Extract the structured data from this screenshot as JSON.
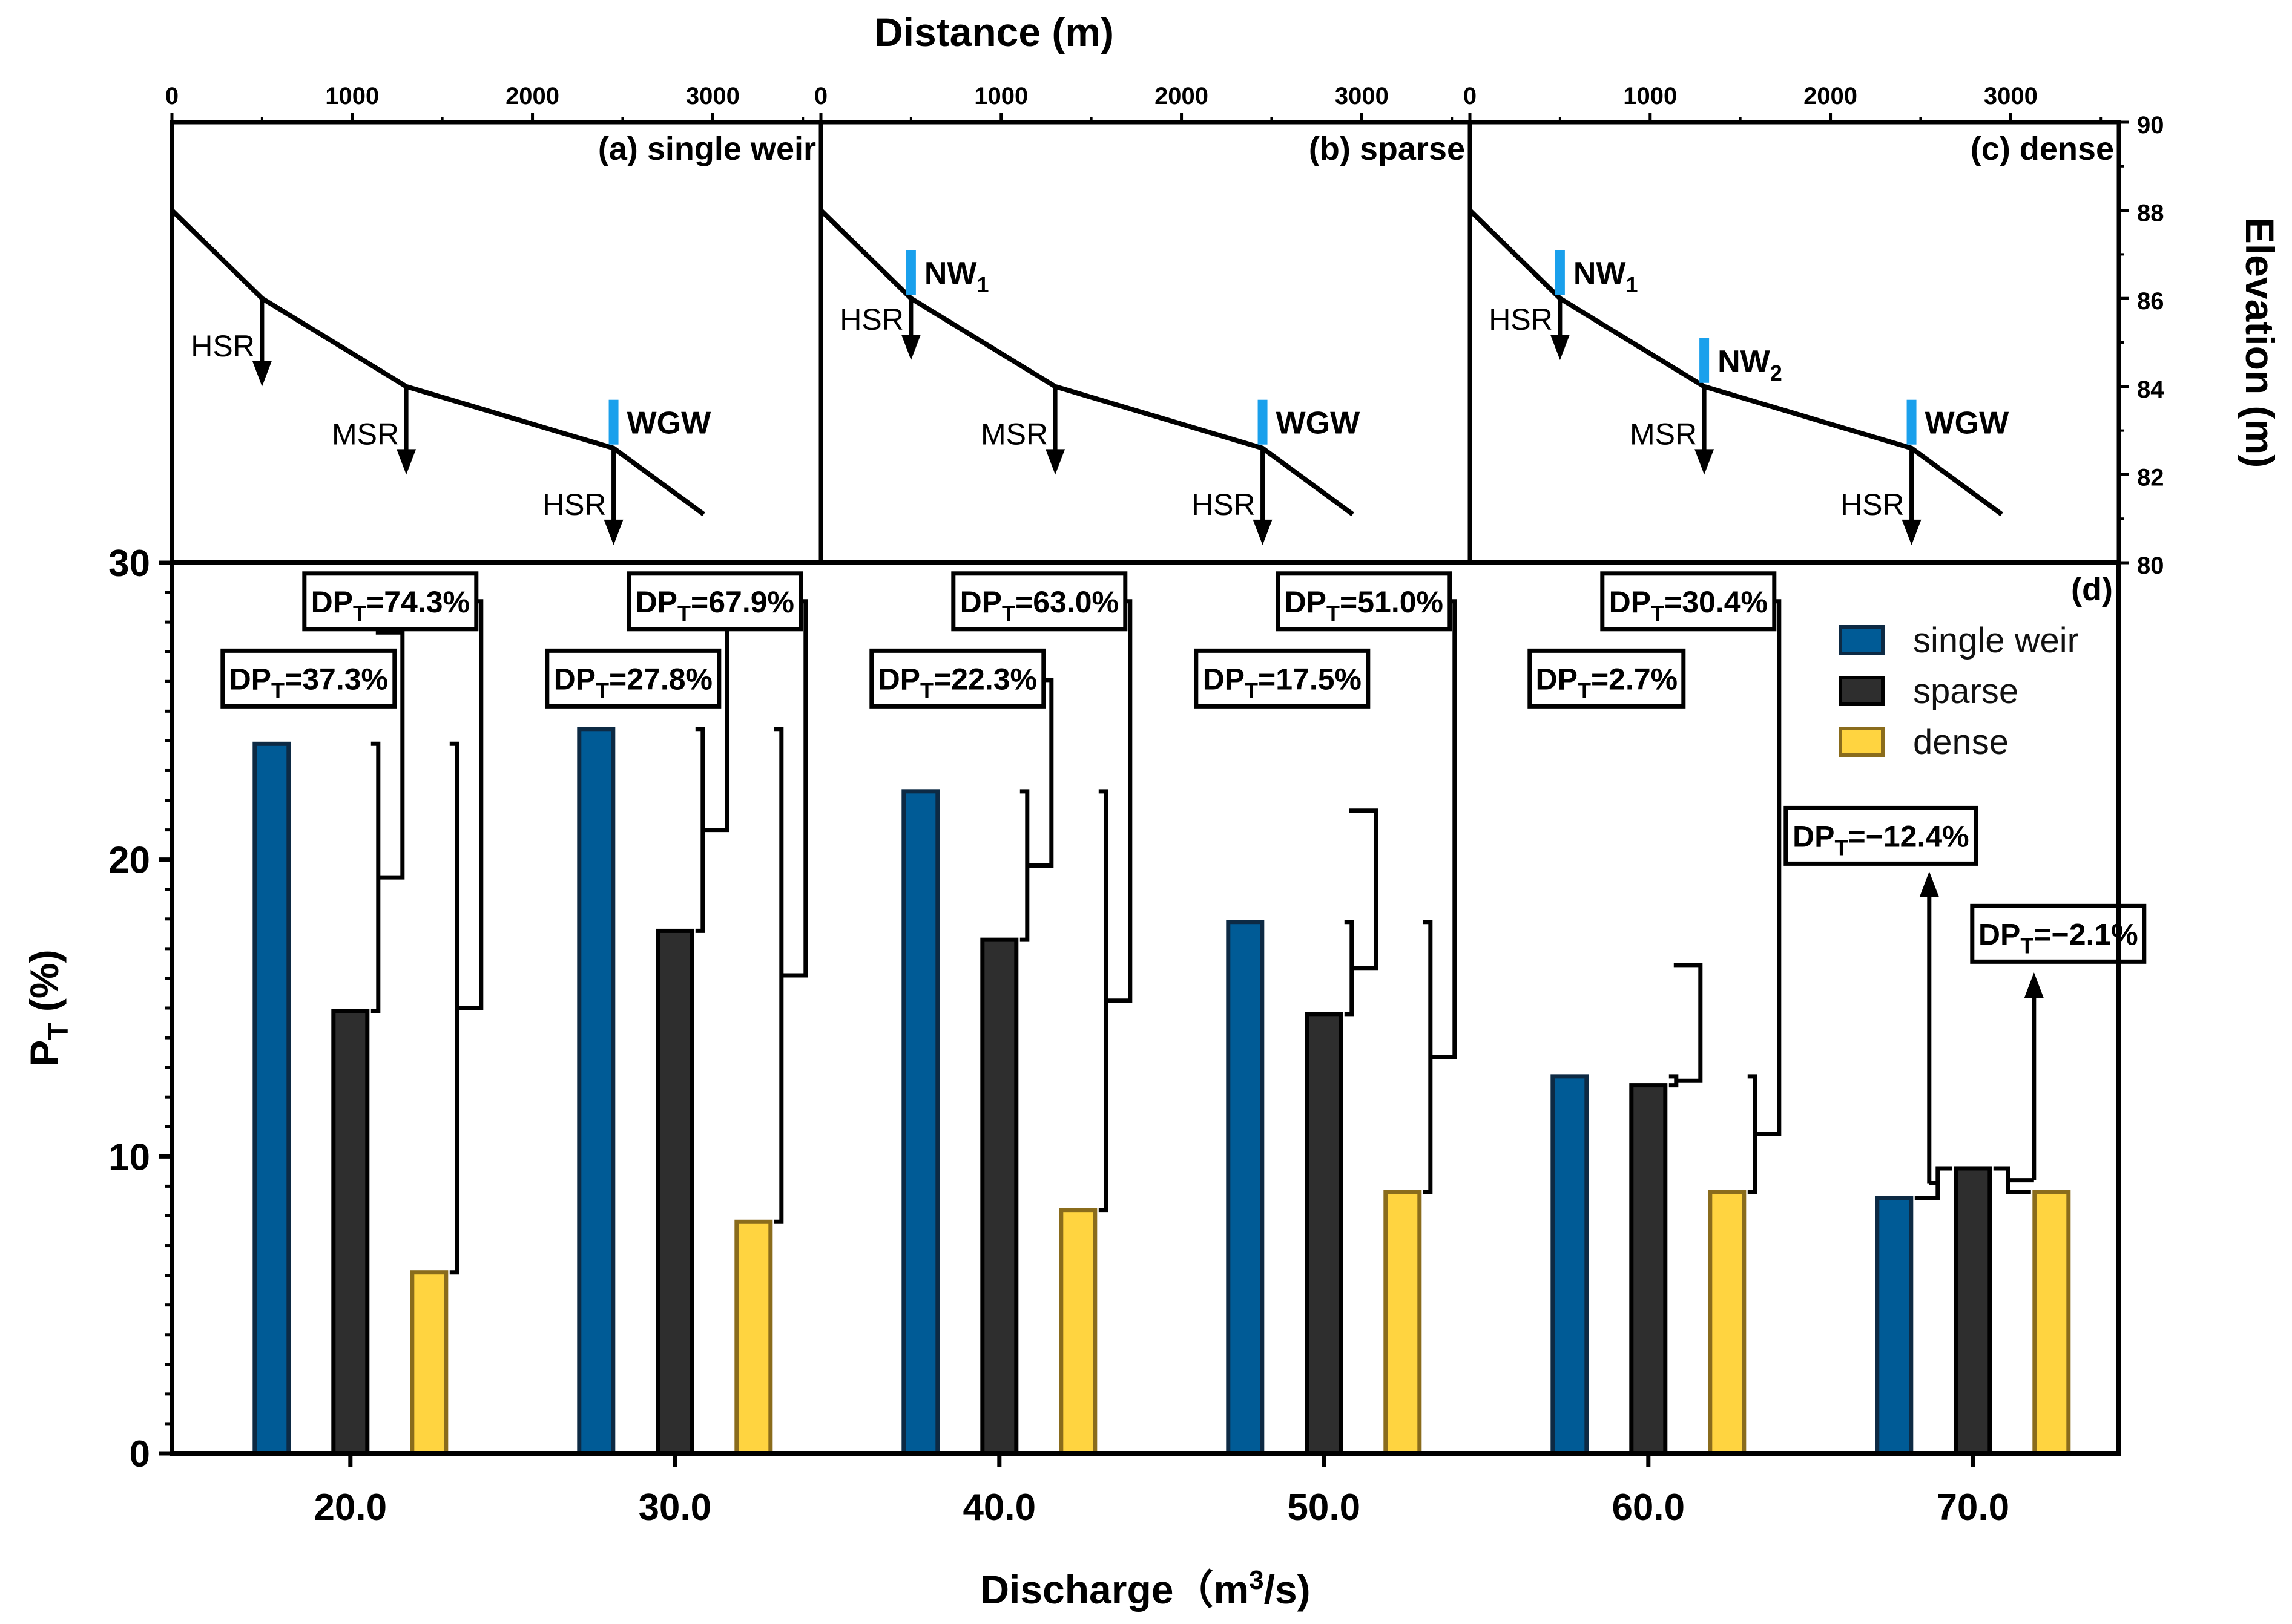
{
  "chart_data": [
    {
      "type": "line",
      "panel": "top",
      "xlabel": "Distance (m)",
      "ylabel": "Elevation (m)",
      "x_ticks": [
        "0",
        "1000",
        "2000",
        "3000"
      ],
      "y_ticks": [
        "80",
        "82",
        "84",
        "86",
        "88",
        "90"
      ],
      "xlim": [
        0,
        3600
      ],
      "ylim": [
        80,
        90
      ],
      "subplots": [
        {
          "label": "(a) single weir",
          "profile": [
            {
              "x": 0,
              "y": 88
            },
            {
              "x": 500,
              "y": 86
            },
            {
              "x": 1300,
              "y": 84
            },
            {
              "x": 2450,
              "y": 82.6
            },
            {
              "x": 2950,
              "y": 81.1
            }
          ],
          "sites": [
            {
              "name": "HSR",
              "x": 500,
              "y_top": 86,
              "y_bottom": 84
            },
            {
              "name": "MSR",
              "x": 1300,
              "y_top": 84,
              "y_bottom": 82
            },
            {
              "name": "HSR",
              "x": 2450,
              "y_top": 82.6,
              "y_bottom": 80.4
            }
          ],
          "weirs": [
            {
              "name": "WGW",
              "sub": "",
              "x": 2450,
              "y": 82.6
            }
          ]
        },
        {
          "label": "(b) sparse",
          "profile": [
            {
              "x": 0,
              "y": 88
            },
            {
              "x": 500,
              "y": 86
            },
            {
              "x": 1300,
              "y": 84
            },
            {
              "x": 2450,
              "y": 82.6
            },
            {
              "x": 2950,
              "y": 81.1
            }
          ],
          "sites": [
            {
              "name": "HSR",
              "x": 500,
              "y_top": 86,
              "y_bottom": 84.6
            },
            {
              "name": "MSR",
              "x": 1300,
              "y_top": 84,
              "y_bottom": 82
            },
            {
              "name": "HSR",
              "x": 2450,
              "y_top": 82.6,
              "y_bottom": 80.4
            }
          ],
          "weirs": [
            {
              "name": "NW",
              "sub": "1",
              "x": 500,
              "y": 86
            },
            {
              "name": "WGW",
              "sub": "",
              "x": 2450,
              "y": 82.6
            }
          ]
        },
        {
          "label": "(c) dense",
          "profile": [
            {
              "x": 0,
              "y": 88
            },
            {
              "x": 500,
              "y": 86
            },
            {
              "x": 1300,
              "y": 84
            },
            {
              "x": 2450,
              "y": 82.6
            },
            {
              "x": 2950,
              "y": 81.1
            }
          ],
          "sites": [
            {
              "name": "HSR",
              "x": 500,
              "y_top": 86,
              "y_bottom": 84.6
            },
            {
              "name": "MSR",
              "x": 1300,
              "y_top": 84,
              "y_bottom": 82
            },
            {
              "name": "HSR",
              "x": 2450,
              "y_top": 82.6,
              "y_bottom": 80.4
            }
          ],
          "weirs": [
            {
              "name": "NW",
              "sub": "1",
              "x": 500,
              "y": 86
            },
            {
              "name": "NW",
              "sub": "2",
              "x": 1300,
              "y": 84
            },
            {
              "name": "WGW",
              "sub": "",
              "x": 2450,
              "y": 82.6
            }
          ]
        }
      ]
    },
    {
      "type": "bar",
      "panel": "bottom",
      "label": "(d)",
      "xlabel_main": "Discharge（m",
      "xlabel_sup": "3",
      "xlabel_end": "/s)",
      "ylabel_main": "P",
      "ylabel_sub": "T",
      "ylabel_end": " (%)",
      "categories": [
        "20.0",
        "30.0",
        "40.0",
        "50.0",
        "60.0",
        "70.0"
      ],
      "y_ticks": [
        "0",
        "10",
        "20",
        "30"
      ],
      "ylim": [
        0,
        30
      ],
      "series": [
        {
          "name": "single weir",
          "color": "#005b96",
          "edge": "#0d2a44",
          "values": [
            23.9,
            24.4,
            22.3,
            17.9,
            12.7,
            8.6
          ]
        },
        {
          "name": "sparse",
          "color": "#2e2e2e",
          "edge": "#000000",
          "values": [
            14.9,
            17.6,
            17.3,
            14.8,
            12.4,
            9.6
          ]
        },
        {
          "name": "dense",
          "color": "#ffd440",
          "edge": "#8a6c1c",
          "values": [
            6.1,
            7.8,
            8.2,
            8.8,
            8.8,
            8.8
          ]
        }
      ],
      "legend_position": "top-right",
      "annotations": [
        {
          "group": 0,
          "label": "DP",
          "sub": "T",
          "value": "=37.3%",
          "compare": "sparse"
        },
        {
          "group": 0,
          "label": "DP",
          "sub": "T",
          "value": "=74.3%",
          "compare": "dense"
        },
        {
          "group": 1,
          "label": "DP",
          "sub": "T",
          "value": "=27.8%",
          "compare": "sparse"
        },
        {
          "group": 1,
          "label": "DP",
          "sub": "T",
          "value": "=67.9%",
          "compare": "dense"
        },
        {
          "group": 2,
          "label": "DP",
          "sub": "T",
          "value": "=22.3%",
          "compare": "sparse"
        },
        {
          "group": 2,
          "label": "DP",
          "sub": "T",
          "value": "=63.0%",
          "compare": "dense"
        },
        {
          "group": 3,
          "label": "DP",
          "sub": "T",
          "value": "=17.5%",
          "compare": "sparse"
        },
        {
          "group": 3,
          "label": "DP",
          "sub": "T",
          "value": "=51.0%",
          "compare": "dense"
        },
        {
          "group": 4,
          "label": "DP",
          "sub": "T",
          "value": "=2.7%",
          "compare": "sparse"
        },
        {
          "group": 4,
          "label": "DP",
          "sub": "T",
          "value": "=30.4%",
          "compare": "dense"
        },
        {
          "group": 5,
          "label": "DP",
          "sub": "T",
          "value": "=−12.4%",
          "compare": "sparse"
        },
        {
          "group": 5,
          "label": "DP",
          "sub": "T",
          "value": "=−2.1%",
          "compare": "dense"
        }
      ]
    }
  ]
}
